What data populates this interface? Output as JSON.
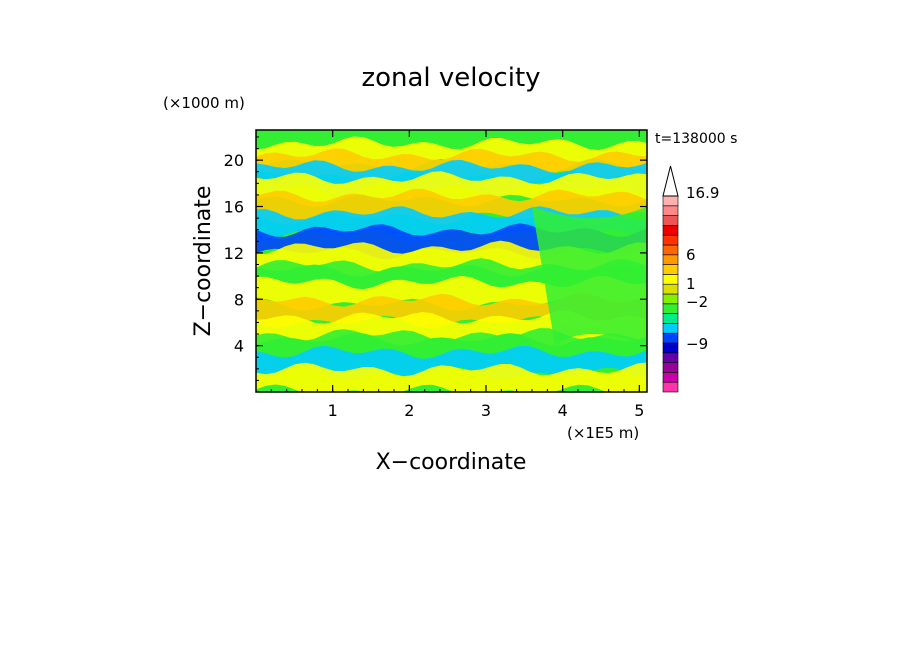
{
  "chart_data": {
    "type": "heatmap",
    "title": "zonal velocity",
    "xlabel": "X−coordinate",
    "ylabel": "Z−coordinate",
    "x_unit": "(×1E5 m)",
    "y_unit": "(×1000 m)",
    "time_label": "t=138000 s",
    "x_ticks": [
      "1",
      "2",
      "3",
      "4",
      "5"
    ],
    "x_tick_values": [
      1,
      2,
      3,
      4,
      5
    ],
    "y_ticks": [
      "4",
      "8",
      "12",
      "16",
      "20"
    ],
    "y_tick_values": [
      4,
      8,
      12,
      16,
      20
    ],
    "xlim": [
      0,
      5.1
    ],
    "ylim": [
      0,
      22.6
    ],
    "colorbar": {
      "labels": [
        "16.9",
        "6",
        "1",
        "−2",
        "−9"
      ],
      "colors": [
        "#ff33aa",
        "#cc00aa",
        "#990099",
        "#6600aa",
        "#0000cc",
        "#0044ff",
        "#00ccff",
        "#00ee88",
        "#33ee33",
        "#88ee00",
        "#dddd00",
        "#ffff00",
        "#ffcc00",
        "#ff9900",
        "#ff6600",
        "#ff3300",
        "#ee0000",
        "#ee5555",
        "#ff8888",
        "#ffb0b0"
      ],
      "extend_max": true
    },
    "field_bands": [
      {
        "z_center": 21.5,
        "level": "green"
      },
      {
        "z_center": 20.5,
        "level": "yellow"
      },
      {
        "z_center": 19.5,
        "level": "orange"
      },
      {
        "z_center": 18.5,
        "level": "cyan"
      },
      {
        "z_center": 17.5,
        "level": "yellow"
      },
      {
        "z_center": 16.0,
        "level": "orange"
      },
      {
        "z_center": 14.5,
        "level": "cyan"
      },
      {
        "z_center": 13.0,
        "level": "blue"
      },
      {
        "z_center": 11.5,
        "level": "yellow"
      },
      {
        "z_center": 10.0,
        "level": "green"
      },
      {
        "z_center": 8.5,
        "level": "yellow"
      },
      {
        "z_center": 7.0,
        "level": "orange"
      },
      {
        "z_center": 5.5,
        "level": "yellow"
      },
      {
        "z_center": 4.0,
        "level": "green"
      },
      {
        "z_center": 2.5,
        "level": "cyan"
      },
      {
        "z_center": 1.0,
        "level": "yellow"
      }
    ]
  }
}
